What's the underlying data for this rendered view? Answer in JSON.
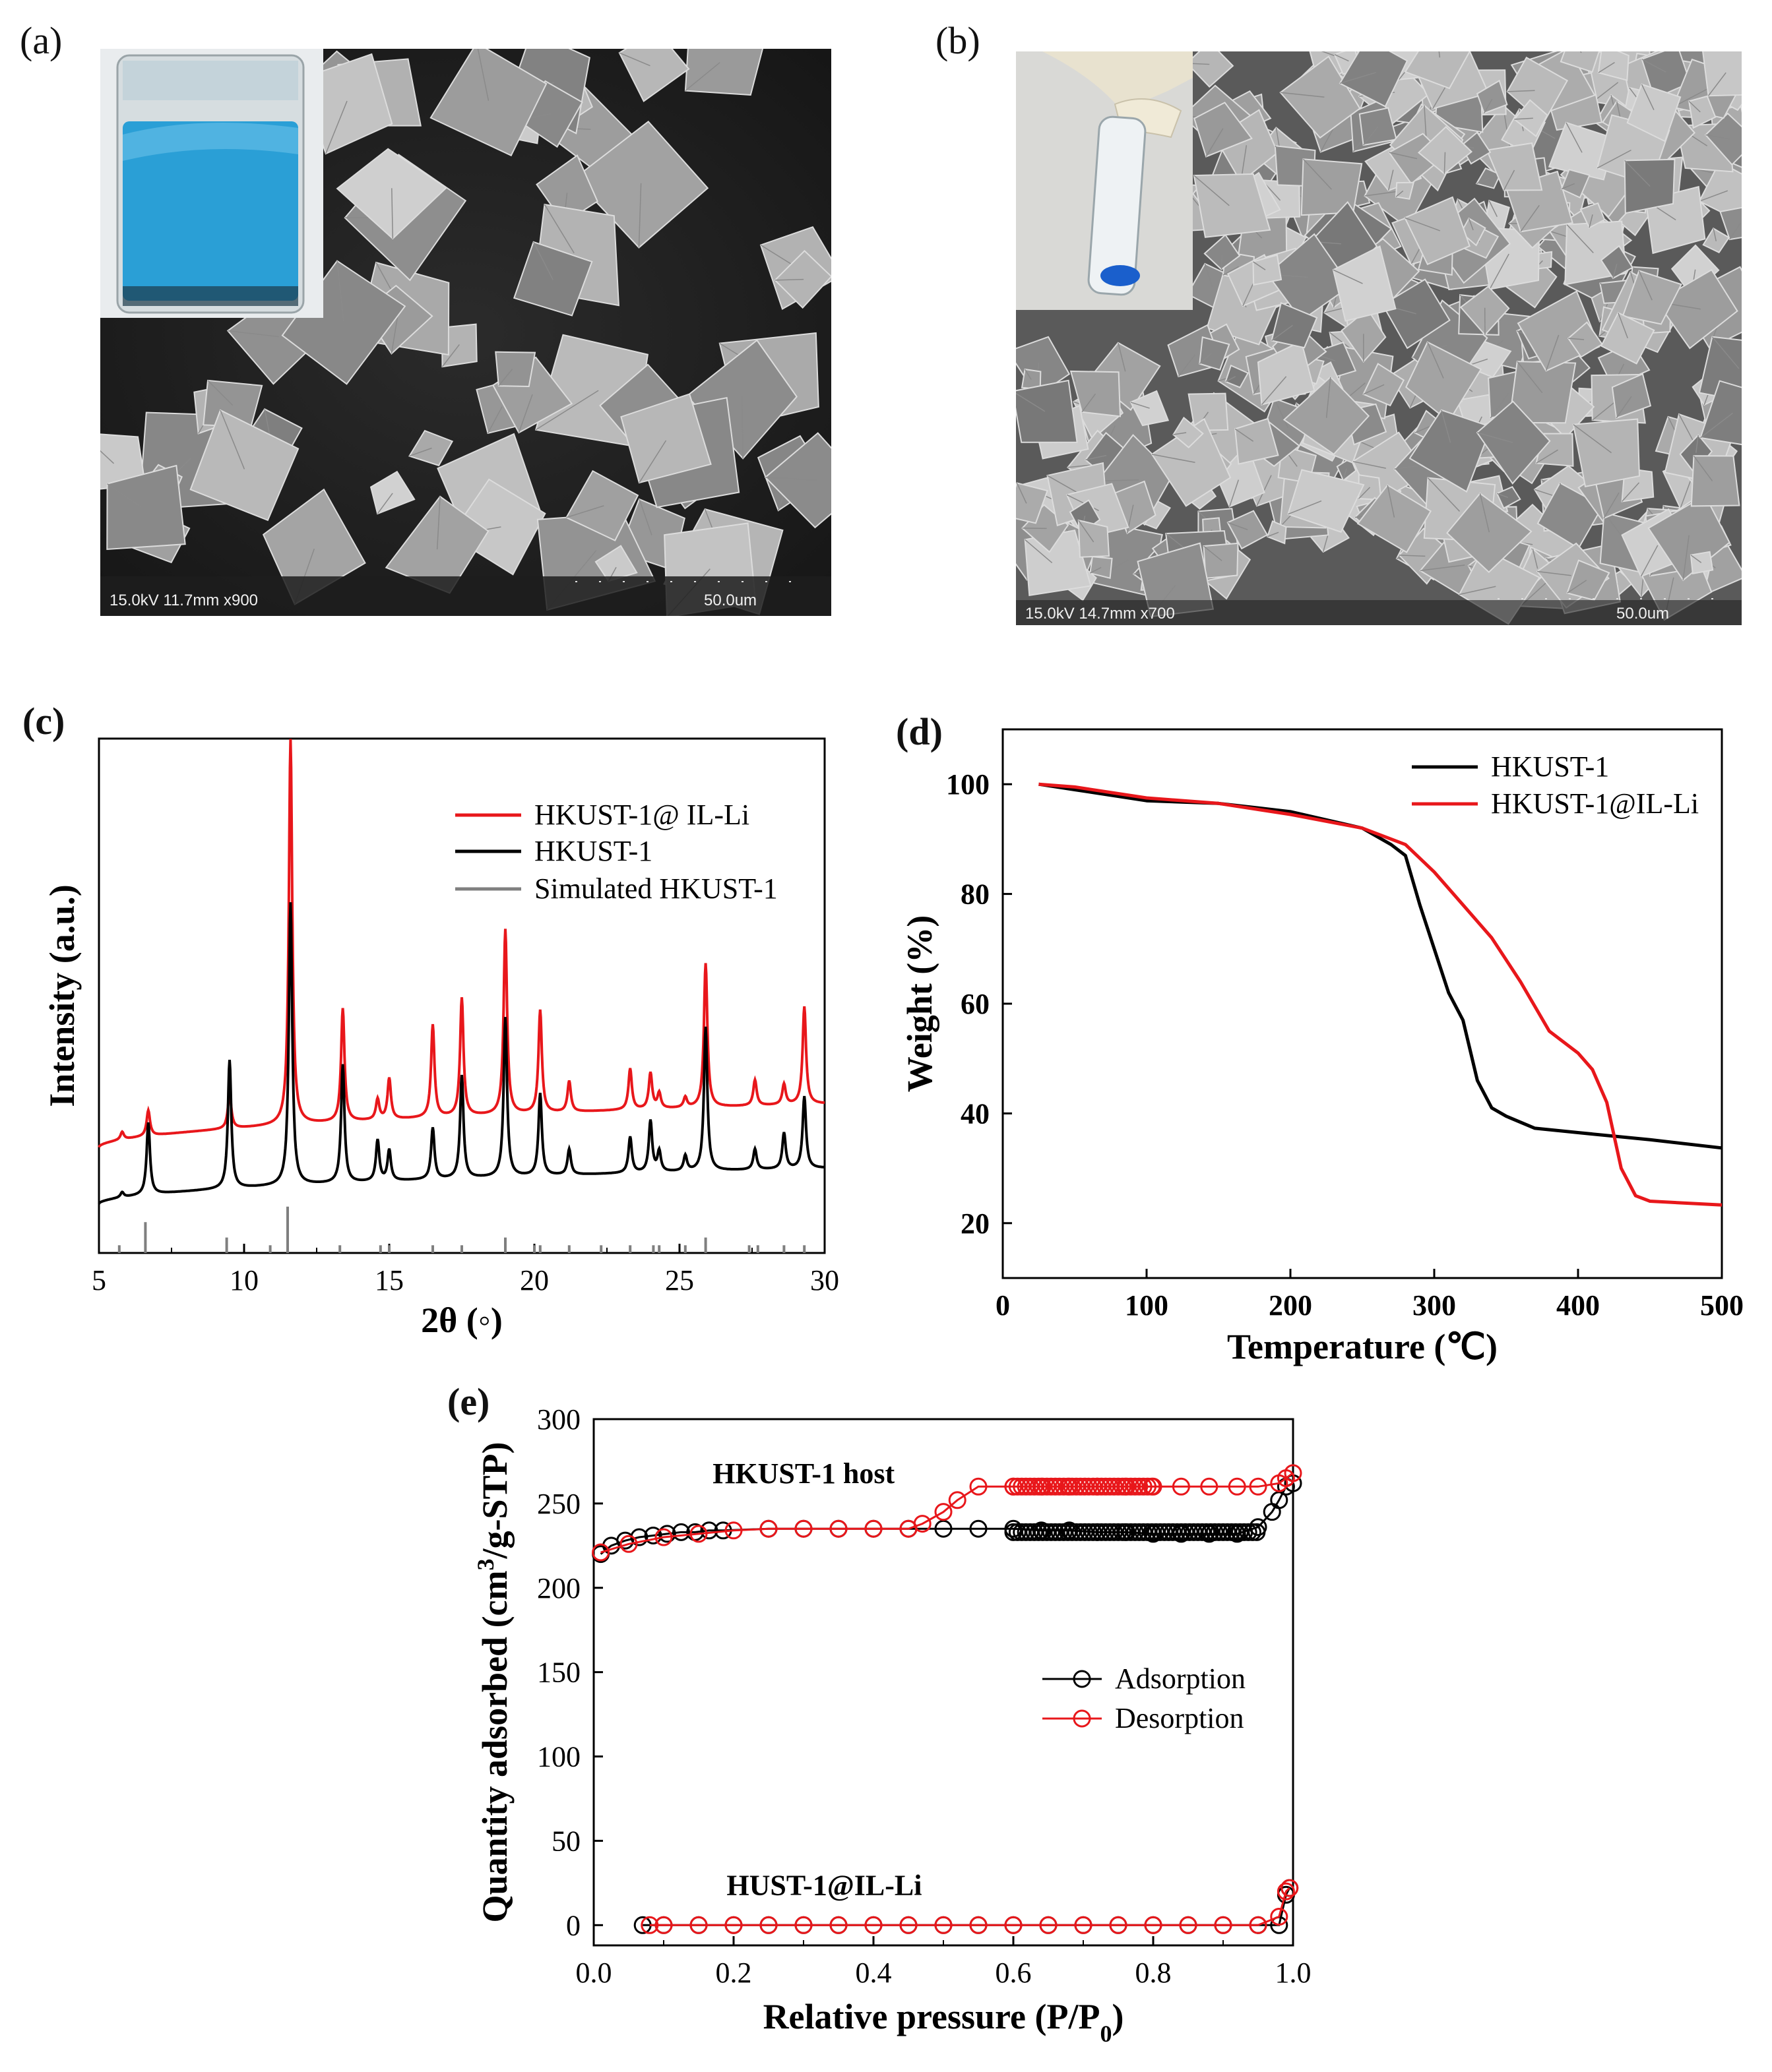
{
  "panels": {
    "a": {
      "label": "(a)",
      "sem_caption": "15.0kV 11.7mm x900",
      "scale_bar": "50.0um",
      "inset": "blue-powder-vial-photo"
    },
    "b": {
      "label": "(b)",
      "sem_caption": "15.0kV 14.7mm x700",
      "scale_bar": "50.0um",
      "inset": "gloved-hand-holding-vial-photo"
    },
    "c": {
      "label": "(c)"
    },
    "d": {
      "label": "(d)"
    },
    "e": {
      "label": "(e)"
    }
  },
  "chart_data": [
    {
      "id": "c",
      "type": "line",
      "title": "",
      "xlabel": "2θ (◦)",
      "ylabel": "Intensity (a.u.)",
      "xlim": [
        5,
        30
      ],
      "xticks": [
        "5",
        "10",
        "15",
        "20",
        "25",
        "30"
      ],
      "legend_position": "top-right",
      "series": [
        {
          "name": "HKUST-1@ IL-Li",
          "color": "#e8171b",
          "style": "line",
          "baseline_start": 0.205,
          "baseline_end": 0.29,
          "peaks": [
            [
              5.8,
              0.015
            ],
            [
              6.7,
              0.05
            ],
            [
              9.5,
              0.07
            ],
            [
              11.6,
              0.75
            ],
            [
              13.4,
              0.22
            ],
            [
              14.6,
              0.04
            ],
            [
              15.0,
              0.08
            ],
            [
              16.5,
              0.18
            ],
            [
              17.5,
              0.23
            ],
            [
              19.0,
              0.36
            ],
            [
              20.2,
              0.2
            ],
            [
              21.2,
              0.06
            ],
            [
              23.3,
              0.08
            ],
            [
              24.0,
              0.07
            ],
            [
              24.3,
              0.03
            ],
            [
              25.2,
              0.02
            ],
            [
              25.9,
              0.28
            ],
            [
              27.6,
              0.05
            ],
            [
              28.6,
              0.04
            ],
            [
              29.3,
              0.19
            ]
          ]
        },
        {
          "name": "HKUST-1",
          "color": "#000000",
          "style": "line",
          "baseline_start": 0.095,
          "baseline_end": 0.165,
          "peaks": [
            [
              5.8,
              0.01
            ],
            [
              6.7,
              0.14
            ],
            [
              9.5,
              0.25
            ],
            [
              11.6,
              0.55
            ],
            [
              13.4,
              0.23
            ],
            [
              14.6,
              0.08
            ],
            [
              15.0,
              0.06
            ],
            [
              16.5,
              0.1
            ],
            [
              17.5,
              0.2
            ],
            [
              19.0,
              0.31
            ],
            [
              20.2,
              0.16
            ],
            [
              21.2,
              0.05
            ],
            [
              23.3,
              0.07
            ],
            [
              24.0,
              0.1
            ],
            [
              24.3,
              0.04
            ],
            [
              25.2,
              0.03
            ],
            [
              25.9,
              0.28
            ],
            [
              27.6,
              0.04
            ],
            [
              28.6,
              0.07
            ],
            [
              29.3,
              0.14
            ]
          ]
        },
        {
          "name": "Simulated HKUST-1",
          "color": "#7f7f7f",
          "style": "sticks",
          "sticks": [
            [
              5.7,
              0.015
            ],
            [
              6.6,
              0.06
            ],
            [
              9.4,
              0.03
            ],
            [
              10.9,
              0.015
            ],
            [
              11.5,
              0.09
            ],
            [
              13.3,
              0.015
            ],
            [
              14.7,
              0.015
            ],
            [
              15.0,
              0.015
            ],
            [
              16.5,
              0.015
            ],
            [
              17.5,
              0.015
            ],
            [
              19.0,
              0.03
            ],
            [
              20.0,
              0.015
            ],
            [
              20.2,
              0.015
            ],
            [
              21.2,
              0.015
            ],
            [
              22.3,
              0.015
            ],
            [
              23.3,
              0.015
            ],
            [
              24.1,
              0.015
            ],
            [
              24.3,
              0.015
            ],
            [
              25.2,
              0.015
            ],
            [
              25.9,
              0.03
            ],
            [
              27.4,
              0.015
            ],
            [
              27.7,
              0.015
            ],
            [
              28.6,
              0.015
            ],
            [
              29.3,
              0.015
            ]
          ]
        }
      ]
    },
    {
      "id": "d",
      "type": "line",
      "title": "",
      "xlabel": "Temperature (℃)",
      "ylabel": "Weight (%)",
      "xlim": [
        0,
        500
      ],
      "ylim": [
        10,
        110
      ],
      "xticks": [
        0,
        100,
        200,
        300,
        400,
        500
      ],
      "yticks": [
        20,
        40,
        60,
        80,
        100
      ],
      "legend_position": "top-right",
      "series": [
        {
          "name": "HKUST-1",
          "color": "#000000",
          "x": [
            25,
            50,
            100,
            150,
            200,
            250,
            270,
            280,
            290,
            300,
            310,
            320,
            330,
            340,
            350,
            370,
            400,
            450,
            500
          ],
          "y": [
            100,
            99,
            97,
            96.5,
            95,
            92,
            89,
            87,
            78,
            70,
            62,
            57,
            46,
            41,
            39.5,
            37.3,
            36.5,
            35.2,
            33.7
          ]
        },
        {
          "name": "HKUST-1@IL-Li",
          "color": "#e8171b",
          "x": [
            25,
            50,
            100,
            150,
            200,
            250,
            280,
            300,
            320,
            340,
            360,
            380,
            400,
            410,
            420,
            430,
            440,
            450,
            500
          ],
          "y": [
            100,
            99.5,
            97.5,
            96.5,
            94.5,
            92,
            89,
            84,
            78,
            72,
            64,
            55,
            51,
            48,
            42,
            30,
            25,
            24,
            23.3
          ]
        }
      ]
    },
    {
      "id": "e",
      "type": "scatter",
      "title": "",
      "xlabel": "Relative pressure (P/P",
      "xlabel_sub": "0",
      "xlabel_close": ")",
      "ylabel_pre": "Quantity adsorbed (cm",
      "ylabel_sup": "3",
      "ylabel_post": "/g-STP)",
      "xlim": [
        0,
        1
      ],
      "ylim": [
        -12,
        300
      ],
      "xticks": [
        "0.0",
        "0.2",
        "0.4",
        "0.6",
        "0.8",
        "1.0"
      ],
      "yticks": [
        0,
        50,
        100,
        150,
        200,
        250,
        300
      ],
      "legend_position": "center-right",
      "annotations": [
        "HKUST-1 host",
        "HUST-1@IL-Li"
      ],
      "series": [
        {
          "name": "Adsorption",
          "color": "#000000",
          "group": "HKUST-1 host",
          "x": [
            0.01,
            0.025,
            0.045,
            0.065,
            0.085,
            0.105,
            0.125,
            0.145,
            0.165,
            0.185,
            0.25,
            0.3,
            0.35,
            0.4,
            0.45,
            0.5,
            0.55,
            0.6,
            0.64,
            0.68,
            0.72,
            0.76,
            0.8,
            0.84,
            0.88,
            0.92,
            0.95,
            0.97,
            0.98,
            0.99,
            1.0
          ],
          "y": [
            220,
            225,
            228,
            230,
            231,
            232,
            233,
            233,
            234,
            234,
            235,
            235,
            235,
            235,
            235,
            235,
            235,
            235,
            234,
            234,
            233,
            233,
            232,
            232,
            232,
            232,
            236,
            245,
            252,
            260,
            262
          ]
        },
        {
          "name": "Desorption",
          "color": "#e8171b",
          "group": "HKUST-1 host",
          "x": [
            1.0,
            0.99,
            0.98,
            0.95,
            0.92,
            0.88,
            0.84,
            0.8,
            0.76,
            0.72,
            0.68,
            0.64,
            0.6,
            0.55,
            0.52,
            0.5,
            0.47,
            0.45,
            0.4,
            0.35,
            0.3,
            0.25,
            0.2,
            0.15,
            0.1,
            0.05,
            0.01
          ],
          "y": [
            268,
            265,
            262,
            260,
            260,
            260,
            260,
            260,
            260,
            260,
            260,
            260,
            260,
            260,
            252,
            245,
            238,
            235,
            235,
            235,
            235,
            235,
            234,
            232,
            230,
            226,
            221
          ]
        },
        {
          "name": "Adsorption",
          "color": "#000000",
          "group": "HUST-1@IL-Li",
          "x": [
            0.07,
            0.1,
            0.15,
            0.2,
            0.25,
            0.3,
            0.35,
            0.4,
            0.45,
            0.5,
            0.55,
            0.6,
            0.65,
            0.7,
            0.75,
            0.8,
            0.85,
            0.9,
            0.95,
            0.98,
            0.99,
            0.995
          ],
          "y": [
            0,
            0,
            0,
            0,
            0,
            0,
            0,
            0,
            0,
            0,
            0,
            0,
            0,
            0,
            0,
            0,
            0,
            0,
            0,
            0,
            18,
            22
          ]
        },
        {
          "name": "Desorption",
          "color": "#e8171b",
          "group": "HUST-1@IL-Li",
          "x": [
            0.995,
            0.99,
            0.98,
            0.95,
            0.9,
            0.85,
            0.8,
            0.75,
            0.7,
            0.65,
            0.6,
            0.55,
            0.5,
            0.45,
            0.4,
            0.35,
            0.3,
            0.25,
            0.2,
            0.15,
            0.1,
            0.08
          ],
          "y": [
            22,
            20,
            5,
            0,
            0,
            0,
            0,
            0,
            0,
            0,
            0,
            0,
            0,
            0,
            0,
            0,
            0,
            0,
            0,
            0,
            0,
            0
          ]
        }
      ]
    }
  ]
}
